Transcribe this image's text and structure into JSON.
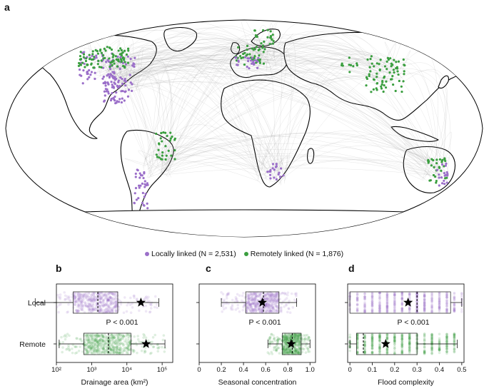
{
  "panels": {
    "a": "a",
    "b": "b",
    "c": "c",
    "d": "d"
  },
  "legend": {
    "local": "Locally linked (N = 2,531)",
    "remote": "Remotely linked (N = 1,876)"
  },
  "colors": {
    "local": "#9b6fc9",
    "remote": "#3a9e3f",
    "links": "#8c8c8c",
    "land": "#ffffff",
    "coast": "#000000"
  },
  "row_labels": {
    "local": "Local",
    "remote": "Remote"
  },
  "chart_data": [
    {
      "type": "box",
      "panel": "b",
      "xlabel": "Drainage area (km²)",
      "xscale": "log",
      "xlim": [
        100,
        200000
      ],
      "tick_labels": [
        "10²",
        "10³",
        "10⁴",
        "10⁵"
      ],
      "tick_values": [
        100,
        1000,
        10000,
        100000
      ],
      "annotation": "P < 0.001",
      "series": [
        {
          "name": "Local",
          "whisker_low": 25,
          "q1": 300,
          "median": 1500,
          "q3": 5500,
          "whisker_high": 80000,
          "mean": 25000
        },
        {
          "name": "Remote",
          "whisker_low": 120,
          "q1": 600,
          "median": 3000,
          "q3": 13000,
          "whisker_high": 120000,
          "mean": 35000
        }
      ]
    },
    {
      "type": "box",
      "panel": "c",
      "xlabel": "Seasonal concentration",
      "xlim": [
        0,
        1.05
      ],
      "tick_labels": [
        "0",
        "0.2",
        "0.4",
        "0.6",
        "0.8",
        "1.0"
      ],
      "tick_values": [
        0,
        0.2,
        0.4,
        0.6,
        0.8,
        1.0
      ],
      "annotation": "P < 0.001",
      "series": [
        {
          "name": "Local",
          "whisker_low": 0.2,
          "q1": 0.42,
          "median": 0.58,
          "q3": 0.72,
          "whisker_high": 0.88,
          "mean": 0.57
        },
        {
          "name": "Remote",
          "whisker_low": 0.62,
          "q1": 0.75,
          "median": 0.84,
          "q3": 0.92,
          "whisker_high": 1.0,
          "mean": 0.83
        }
      ]
    },
    {
      "type": "box",
      "panel": "d",
      "xlabel": "Flood complexity",
      "xlim": [
        -0.01,
        0.51
      ],
      "tick_labels": [
        "0",
        "0.1",
        "0.2",
        "0.3",
        "0.4",
        "0.5"
      ],
      "tick_values": [
        0,
        0.1,
        0.2,
        0.3,
        0.4,
        0.5
      ],
      "annotation": "P < 0.001",
      "series": [
        {
          "name": "Local",
          "whisker_low": 0.0,
          "q1": 0.0,
          "median": 0.3,
          "q3": 0.45,
          "whisker_high": 0.5,
          "mean": 0.26
        },
        {
          "name": "Remote",
          "whisker_low": 0.0,
          "q1": 0.03,
          "median": 0.06,
          "q3": 0.3,
          "whisker_high": 0.48,
          "mean": 0.16
        }
      ]
    }
  ]
}
